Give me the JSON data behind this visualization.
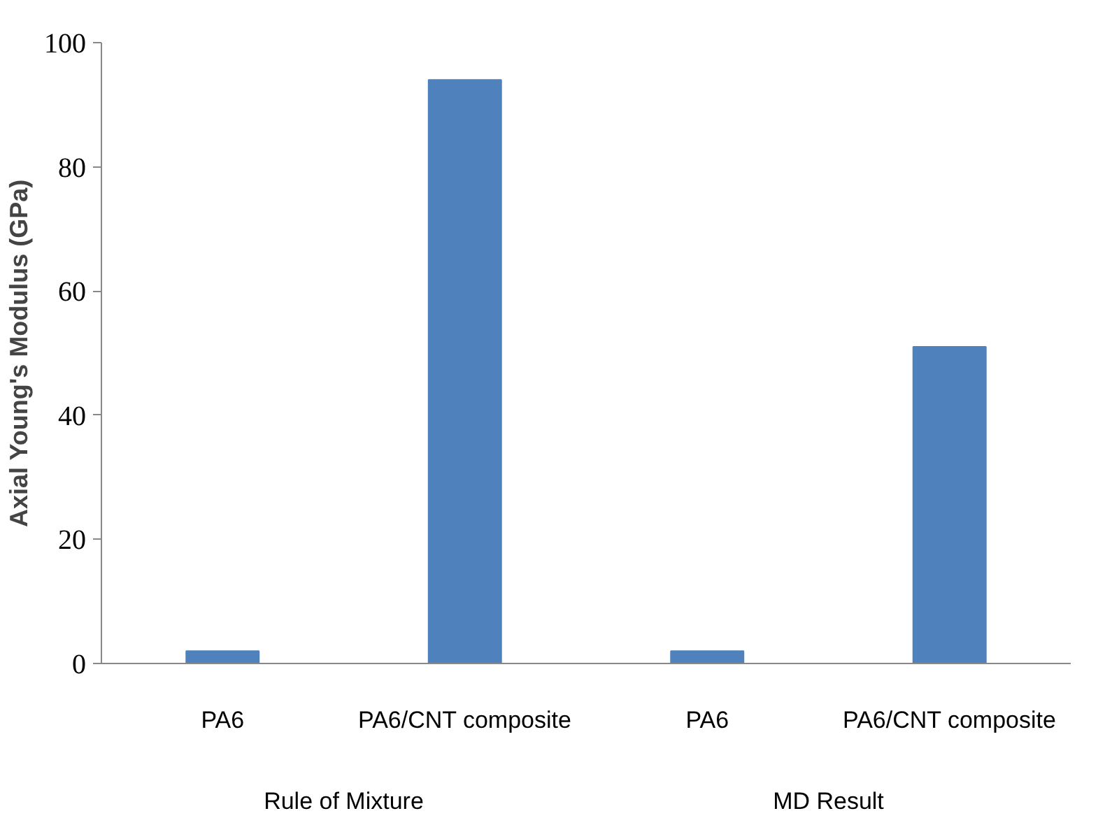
{
  "chart_data": {
    "type": "bar",
    "ylabel": "Axial Young's Modulus (GPa)",
    "categories": [
      "PA6",
      "PA6/CNT composite",
      "PA6",
      "PA6/CNT composite"
    ],
    "values": [
      2,
      94,
      2,
      51
    ],
    "color": "#4f81bd",
    "annotations": [
      "Rule of Mixture",
      "MD Result"
    ],
    "ylim": [
      0,
      100
    ],
    "yticks": [
      0,
      20,
      40,
      60,
      80,
      100
    ],
    "grid": false
  }
}
